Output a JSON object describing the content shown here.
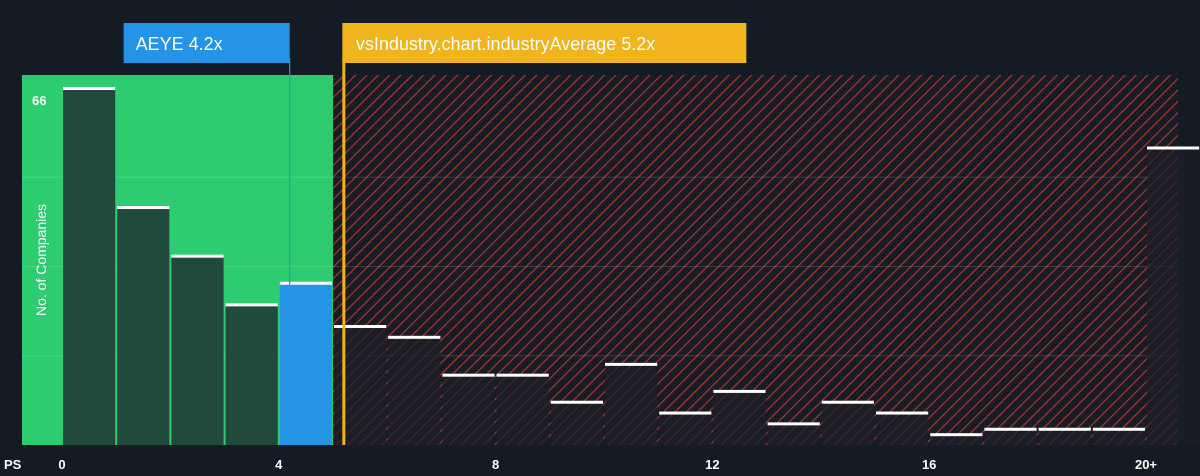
{
  "chart_data": {
    "type": "bar",
    "title": "",
    "xlabel": "PS",
    "ylabel": "No. of Companies",
    "x_tick_labels": [
      "0",
      "4",
      "8",
      "12",
      "16",
      "20+"
    ],
    "x_ticks": [
      0,
      4,
      8,
      12,
      16,
      20
    ],
    "xlim": [
      0,
      20.5
    ],
    "y_max_label": "66",
    "ylim": [
      0,
      66
    ],
    "grid": true,
    "bin_width": 1,
    "bins": [
      {
        "x": 0,
        "count": 66
      },
      {
        "x": 1,
        "count": 44
      },
      {
        "x": 2,
        "count": 35
      },
      {
        "x": 3,
        "count": 26
      },
      {
        "x": 4,
        "count": 30
      },
      {
        "x": 5,
        "count": 22
      },
      {
        "x": 6,
        "count": 20
      },
      {
        "x": 7,
        "count": 13
      },
      {
        "x": 8,
        "count": 13
      },
      {
        "x": 9,
        "count": 8
      },
      {
        "x": 10,
        "count": 15
      },
      {
        "x": 11,
        "count": 6
      },
      {
        "x": 12,
        "count": 10
      },
      {
        "x": 13,
        "count": 4
      },
      {
        "x": 14,
        "count": 8
      },
      {
        "x": 15,
        "count": 6
      },
      {
        "x": 16,
        "count": 2
      },
      {
        "x": 17,
        "count": 3
      },
      {
        "x": 18,
        "count": 3
      },
      {
        "x": 19,
        "count": 3
      },
      {
        "x": 20,
        "count": 55
      }
    ],
    "company": {
      "label": "AEYE 4.2x",
      "value": 4.2
    },
    "industry": {
      "label": "vsIndustry.chart.industryAverage 5.2x",
      "value": 5.2
    },
    "fair_range_max": 5,
    "colors": {
      "background": "#151b24",
      "fair_zone": "#2ecc71",
      "bar_fill": "#1f4a3c",
      "bar_highlight": "#2594e6",
      "hatch": "#c0392b",
      "company_callout": "#2594e6",
      "industry_callout": "#f0b41c",
      "bar_cap": "#ffffff"
    }
  }
}
